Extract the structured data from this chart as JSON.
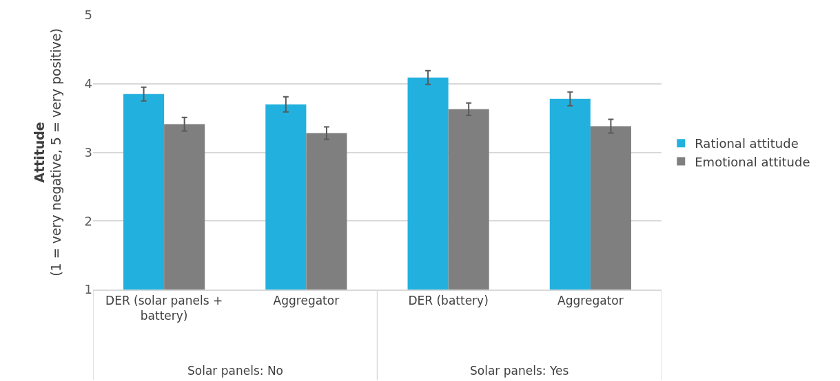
{
  "chart_data": {
    "type": "bar",
    "ylabel": "Attitude\n(1 = very negative, 5 = very positive)",
    "categories": [
      "DER (solar panels + battery)",
      "Aggregator",
      "DER (battery)",
      "Aggregator"
    ],
    "series": [
      {
        "name": "Rational attitude",
        "color": "#22b1df",
        "values": [
          3.85,
          3.7,
          4.09,
          3.78
        ],
        "errors": [
          0.1,
          0.11,
          0.1,
          0.1
        ]
      },
      {
        "name": "Emotional attitude",
        "color": "#7f7f7f",
        "values": [
          3.41,
          3.28,
          3.63,
          3.38
        ],
        "errors": [
          0.1,
          0.09,
          0.09,
          0.1
        ]
      }
    ],
    "ylim": [
      1,
      5
    ],
    "yticks": [
      1,
      2,
      3,
      4,
      5
    ],
    "grid": "y",
    "legend": "right",
    "annotations": [
      "Solar panels: No",
      "Solar panels: Yes"
    ]
  }
}
